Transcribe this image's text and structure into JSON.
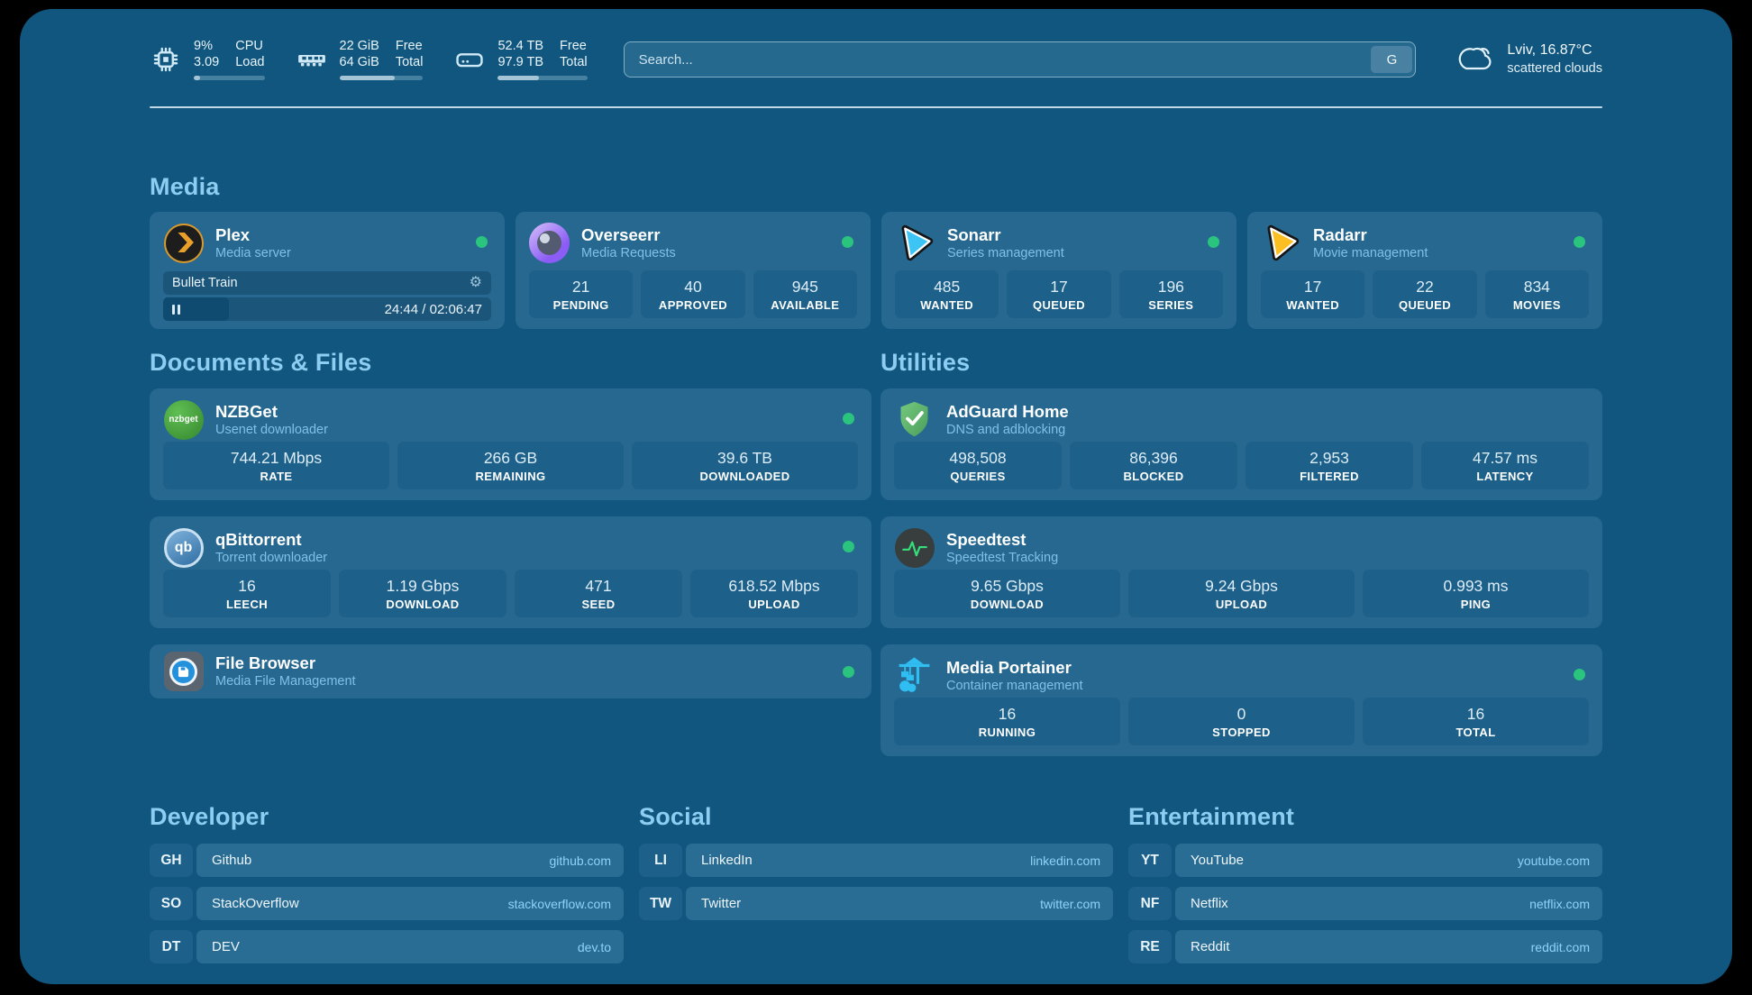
{
  "topbar": {
    "stats": [
      {
        "icon": "cpu-icon",
        "values": [
          "9%",
          "3.09"
        ],
        "labels": [
          "CPU",
          "Load"
        ],
        "bar_percent": 9
      },
      {
        "icon": "ram-icon",
        "values": [
          "22 GiB",
          "64 GiB"
        ],
        "labels": [
          "Free",
          "Total"
        ],
        "bar_percent": 66
      },
      {
        "icon": "disk-icon",
        "values": [
          "52.4 TB",
          "97.9 TB"
        ],
        "labels": [
          "Free",
          "Total"
        ],
        "bar_percent": 46
      }
    ],
    "search": {
      "placeholder": "Search...",
      "button_label": "G"
    },
    "weather": {
      "location": "Lviv, 16.87°C",
      "condition": "scattered clouds"
    }
  },
  "sections": {
    "media": {
      "title": "Media",
      "cards": [
        {
          "name": "Plex",
          "subtitle": "Media server",
          "online": true,
          "player": {
            "track": "Bullet Train",
            "time": "24:44 / 02:06:47",
            "progress_percent": 20
          }
        },
        {
          "name": "Overseerr",
          "subtitle": "Media Requests",
          "online": true,
          "stats": [
            {
              "value": "21",
              "label": "PENDING"
            },
            {
              "value": "40",
              "label": "APPROVED"
            },
            {
              "value": "945",
              "label": "AVAILABLE"
            }
          ]
        },
        {
          "name": "Sonarr",
          "subtitle": "Series management",
          "online": true,
          "stats": [
            {
              "value": "485",
              "label": "WANTED"
            },
            {
              "value": "17",
              "label": "QUEUED"
            },
            {
              "value": "196",
              "label": "SERIES"
            }
          ]
        },
        {
          "name": "Radarr",
          "subtitle": "Movie management",
          "online": true,
          "stats": [
            {
              "value": "17",
              "label": "WANTED"
            },
            {
              "value": "22",
              "label": "QUEUED"
            },
            {
              "value": "834",
              "label": "MOVIES"
            }
          ]
        }
      ]
    },
    "documents": {
      "title": "Documents & Files",
      "cards": [
        {
          "name": "NZBGet",
          "subtitle": "Usenet downloader",
          "online": true,
          "stats": [
            {
              "value": "744.21 Mbps",
              "label": "RATE"
            },
            {
              "value": "266 GB",
              "label": "REMAINING"
            },
            {
              "value": "39.6 TB",
              "label": "DOWNLOADED"
            }
          ]
        },
        {
          "name": "qBittorrent",
          "subtitle": "Torrent downloader",
          "online": true,
          "stats": [
            {
              "value": "16",
              "label": "LEECH"
            },
            {
              "value": "1.19 Gbps",
              "label": "DOWNLOAD"
            },
            {
              "value": "471",
              "label": "SEED"
            },
            {
              "value": "618.52 Mbps",
              "label": "UPLOAD"
            }
          ]
        },
        {
          "name": "File Browser",
          "subtitle": "Media File Management",
          "online": true
        }
      ]
    },
    "utilities": {
      "title": "Utilities",
      "cards": [
        {
          "name": "AdGuard Home",
          "subtitle": "DNS and adblocking",
          "stats": [
            {
              "value": "498,508",
              "label": "QUERIES"
            },
            {
              "value": "86,396",
              "label": "BLOCKED"
            },
            {
              "value": "2,953",
              "label": "FILTERED"
            },
            {
              "value": "47.57 ms",
              "label": "LATENCY"
            }
          ]
        },
        {
          "name": "Speedtest",
          "subtitle": "Speedtest Tracking",
          "stats": [
            {
              "value": "9.65 Gbps",
              "label": "DOWNLOAD"
            },
            {
              "value": "9.24 Gbps",
              "label": "UPLOAD"
            },
            {
              "value": "0.993 ms",
              "label": "PING"
            }
          ]
        },
        {
          "name": "Media Portainer",
          "subtitle": "Container management",
          "online": true,
          "stats": [
            {
              "value": "16",
              "label": "RUNNING"
            },
            {
              "value": "0",
              "label": "STOPPED"
            },
            {
              "value": "16",
              "label": "TOTAL"
            }
          ]
        }
      ]
    },
    "links": [
      {
        "title": "Developer",
        "items": [
          {
            "abbr": "GH",
            "name": "Github",
            "url": "github.com"
          },
          {
            "abbr": "SO",
            "name": "StackOverflow",
            "url": "stackoverflow.com"
          },
          {
            "abbr": "DT",
            "name": "DEV",
            "url": "dev.to"
          }
        ]
      },
      {
        "title": "Social",
        "items": [
          {
            "abbr": "LI",
            "name": "LinkedIn",
            "url": "linkedin.com"
          },
          {
            "abbr": "TW",
            "name": "Twitter",
            "url": "twitter.com"
          }
        ]
      },
      {
        "title": "Entertainment",
        "items": [
          {
            "abbr": "YT",
            "name": "YouTube",
            "url": "youtube.com"
          },
          {
            "abbr": "NF",
            "name": "Netflix",
            "url": "netflix.com"
          },
          {
            "abbr": "RE",
            "name": "Reddit",
            "url": "reddit.com"
          }
        ]
      }
    ]
  },
  "colors": {
    "background": "#10567e",
    "card": "#26688f",
    "tile": "#1d6089",
    "section_title": "#8ccdf1",
    "status_online": "#2bc47e",
    "url_text": "#8fd2f7"
  }
}
